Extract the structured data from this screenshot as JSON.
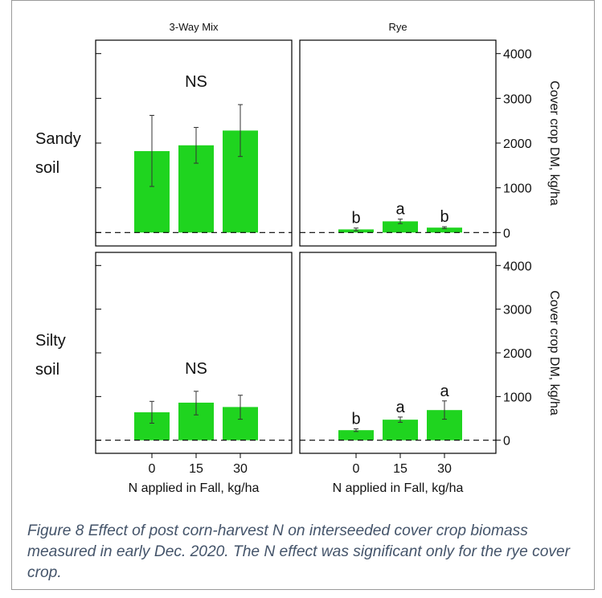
{
  "chart_data": {
    "type": "bar",
    "categories": [
      "0",
      "15",
      "30"
    ],
    "xlabel": "N applied in Fall, kg/ha",
    "ylabel": "Cover crop DM, kg/ha",
    "ylim": [
      -300,
      4300
    ],
    "yticks": [
      0,
      1000,
      2000,
      3000,
      4000
    ],
    "reference_line": 0,
    "colors": {
      "bar": "#1fd41f",
      "error": "#333333",
      "frame": "#000000"
    },
    "columns": [
      "3-Way Mix",
      "Rye"
    ],
    "rows": [
      {
        "label": [
          "Sandy",
          "soil"
        ]
      },
      {
        "label": [
          "Silty",
          "soil"
        ]
      }
    ],
    "panels": [
      {
        "row": 0,
        "col": 0,
        "values": [
          1820,
          1950,
          2280
        ],
        "errors": [
          [
            1030,
            2620
          ],
          [
            1550,
            2350
          ],
          [
            1700,
            2860
          ]
        ],
        "annotation": "NS",
        "letters": []
      },
      {
        "row": 0,
        "col": 1,
        "values": [
          70,
          250,
          110
        ],
        "errors": [
          [
            40,
            100
          ],
          [
            200,
            300
          ],
          [
            90,
            130
          ]
        ],
        "annotation": "",
        "letters": [
          "b",
          "a",
          "b"
        ]
      },
      {
        "row": 1,
        "col": 0,
        "values": [
          640,
          860,
          760
        ],
        "errors": [
          [
            390,
            890
          ],
          [
            580,
            1120
          ],
          [
            480,
            1030
          ]
        ],
        "annotation": "NS",
        "letters": []
      },
      {
        "row": 1,
        "col": 1,
        "values": [
          230,
          470,
          690
        ],
        "errors": [
          [
            200,
            260
          ],
          [
            410,
            530
          ],
          [
            480,
            900
          ]
        ],
        "annotation": "",
        "letters": [
          "b",
          "a",
          "a"
        ]
      }
    ]
  },
  "caption": "Figure 8 Effect of post corn-harvest N on interseeded cover crop biomass measured in early Dec. 2020. The N effect was significant only for the rye cover crop."
}
